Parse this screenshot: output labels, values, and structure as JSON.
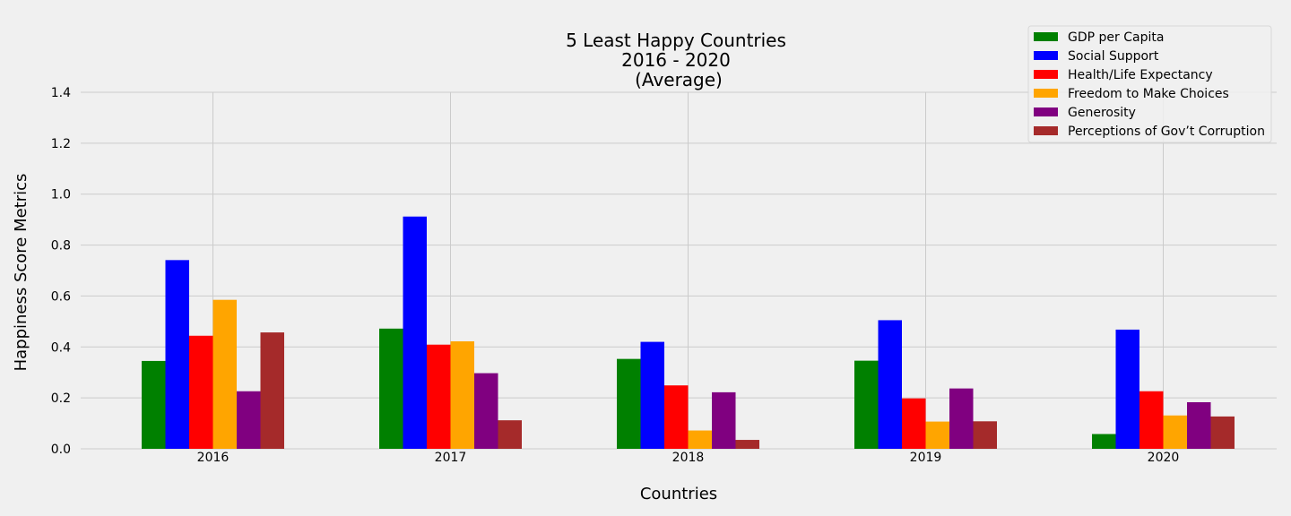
{
  "chart_data": {
    "type": "bar",
    "title": [
      "5 Least Happy Countries",
      "2016 - 2020",
      "(Average)"
    ],
    "xlabel": "Countries",
    "ylabel": "Happiness Score Metrics",
    "categories": [
      "2016",
      "2017",
      "2018",
      "2019",
      "2020"
    ],
    "ylim": [
      0,
      1.4
    ],
    "yticks": [
      "0.0",
      "0.2",
      "0.4",
      "0.6",
      "0.8",
      "1.0",
      "1.2",
      "1.4"
    ],
    "grid": true,
    "legend_position": "top-right",
    "series": [
      {
        "name": "GDP per Capita",
        "color": "#008000",
        "values": [
          0.345,
          0.472,
          0.353,
          0.346,
          0.058
        ]
      },
      {
        "name": "Social Support",
        "color": "#0000ff",
        "values": [
          0.741,
          0.912,
          0.42,
          0.505,
          0.468
        ]
      },
      {
        "name": "Health/Life Expectancy",
        "color": "#ff0000",
        "values": [
          0.444,
          0.409,
          0.249,
          0.198,
          0.226
        ]
      },
      {
        "name": "Freedom to Make Choices",
        "color": "#ffa500",
        "values": [
          0.585,
          0.422,
          0.072,
          0.107,
          0.131
        ]
      },
      {
        "name": "Generosity",
        "color": "#800080",
        "values": [
          0.226,
          0.297,
          0.222,
          0.237,
          0.183
        ]
      },
      {
        "name": "Perceptions of Gov’t Corruption",
        "color": "#a52a2a",
        "values": [
          0.457,
          0.112,
          0.035,
          0.108,
          0.127
        ]
      }
    ]
  }
}
